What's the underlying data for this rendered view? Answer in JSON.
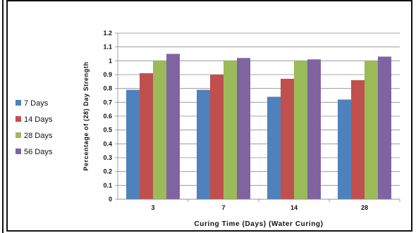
{
  "chart_data": {
    "type": "bar",
    "categories": [
      "3",
      "7",
      "14",
      "28"
    ],
    "series": [
      {
        "name": "7 Days",
        "color": "#4f81bd",
        "values": [
          0.79,
          0.79,
          0.74,
          0.72
        ]
      },
      {
        "name": "14 Days",
        "color": "#c0504d",
        "values": [
          0.91,
          0.9,
          0.87,
          0.86
        ]
      },
      {
        "name": "28 Days",
        "color": "#9bbb59",
        "values": [
          1.0,
          1.0,
          1.0,
          1.0
        ]
      },
      {
        "name": "56 Days",
        "color": "#8064a2",
        "values": [
          1.05,
          1.02,
          1.01,
          1.03
        ]
      }
    ],
    "xlabel": "Curing Time (Days)  (Water Curing)",
    "ylabel": "Percentage of (28) Day Strength",
    "ylim": [
      0,
      1.2
    ],
    "yticks": [
      "0",
      "0.1",
      "0.2",
      "0.3",
      "0.4",
      "0.5",
      "0.6",
      "0.7",
      "0.8",
      "0.9",
      "1",
      "1.1",
      "1.2"
    ],
    "grid": true,
    "legend_position": "left"
  }
}
